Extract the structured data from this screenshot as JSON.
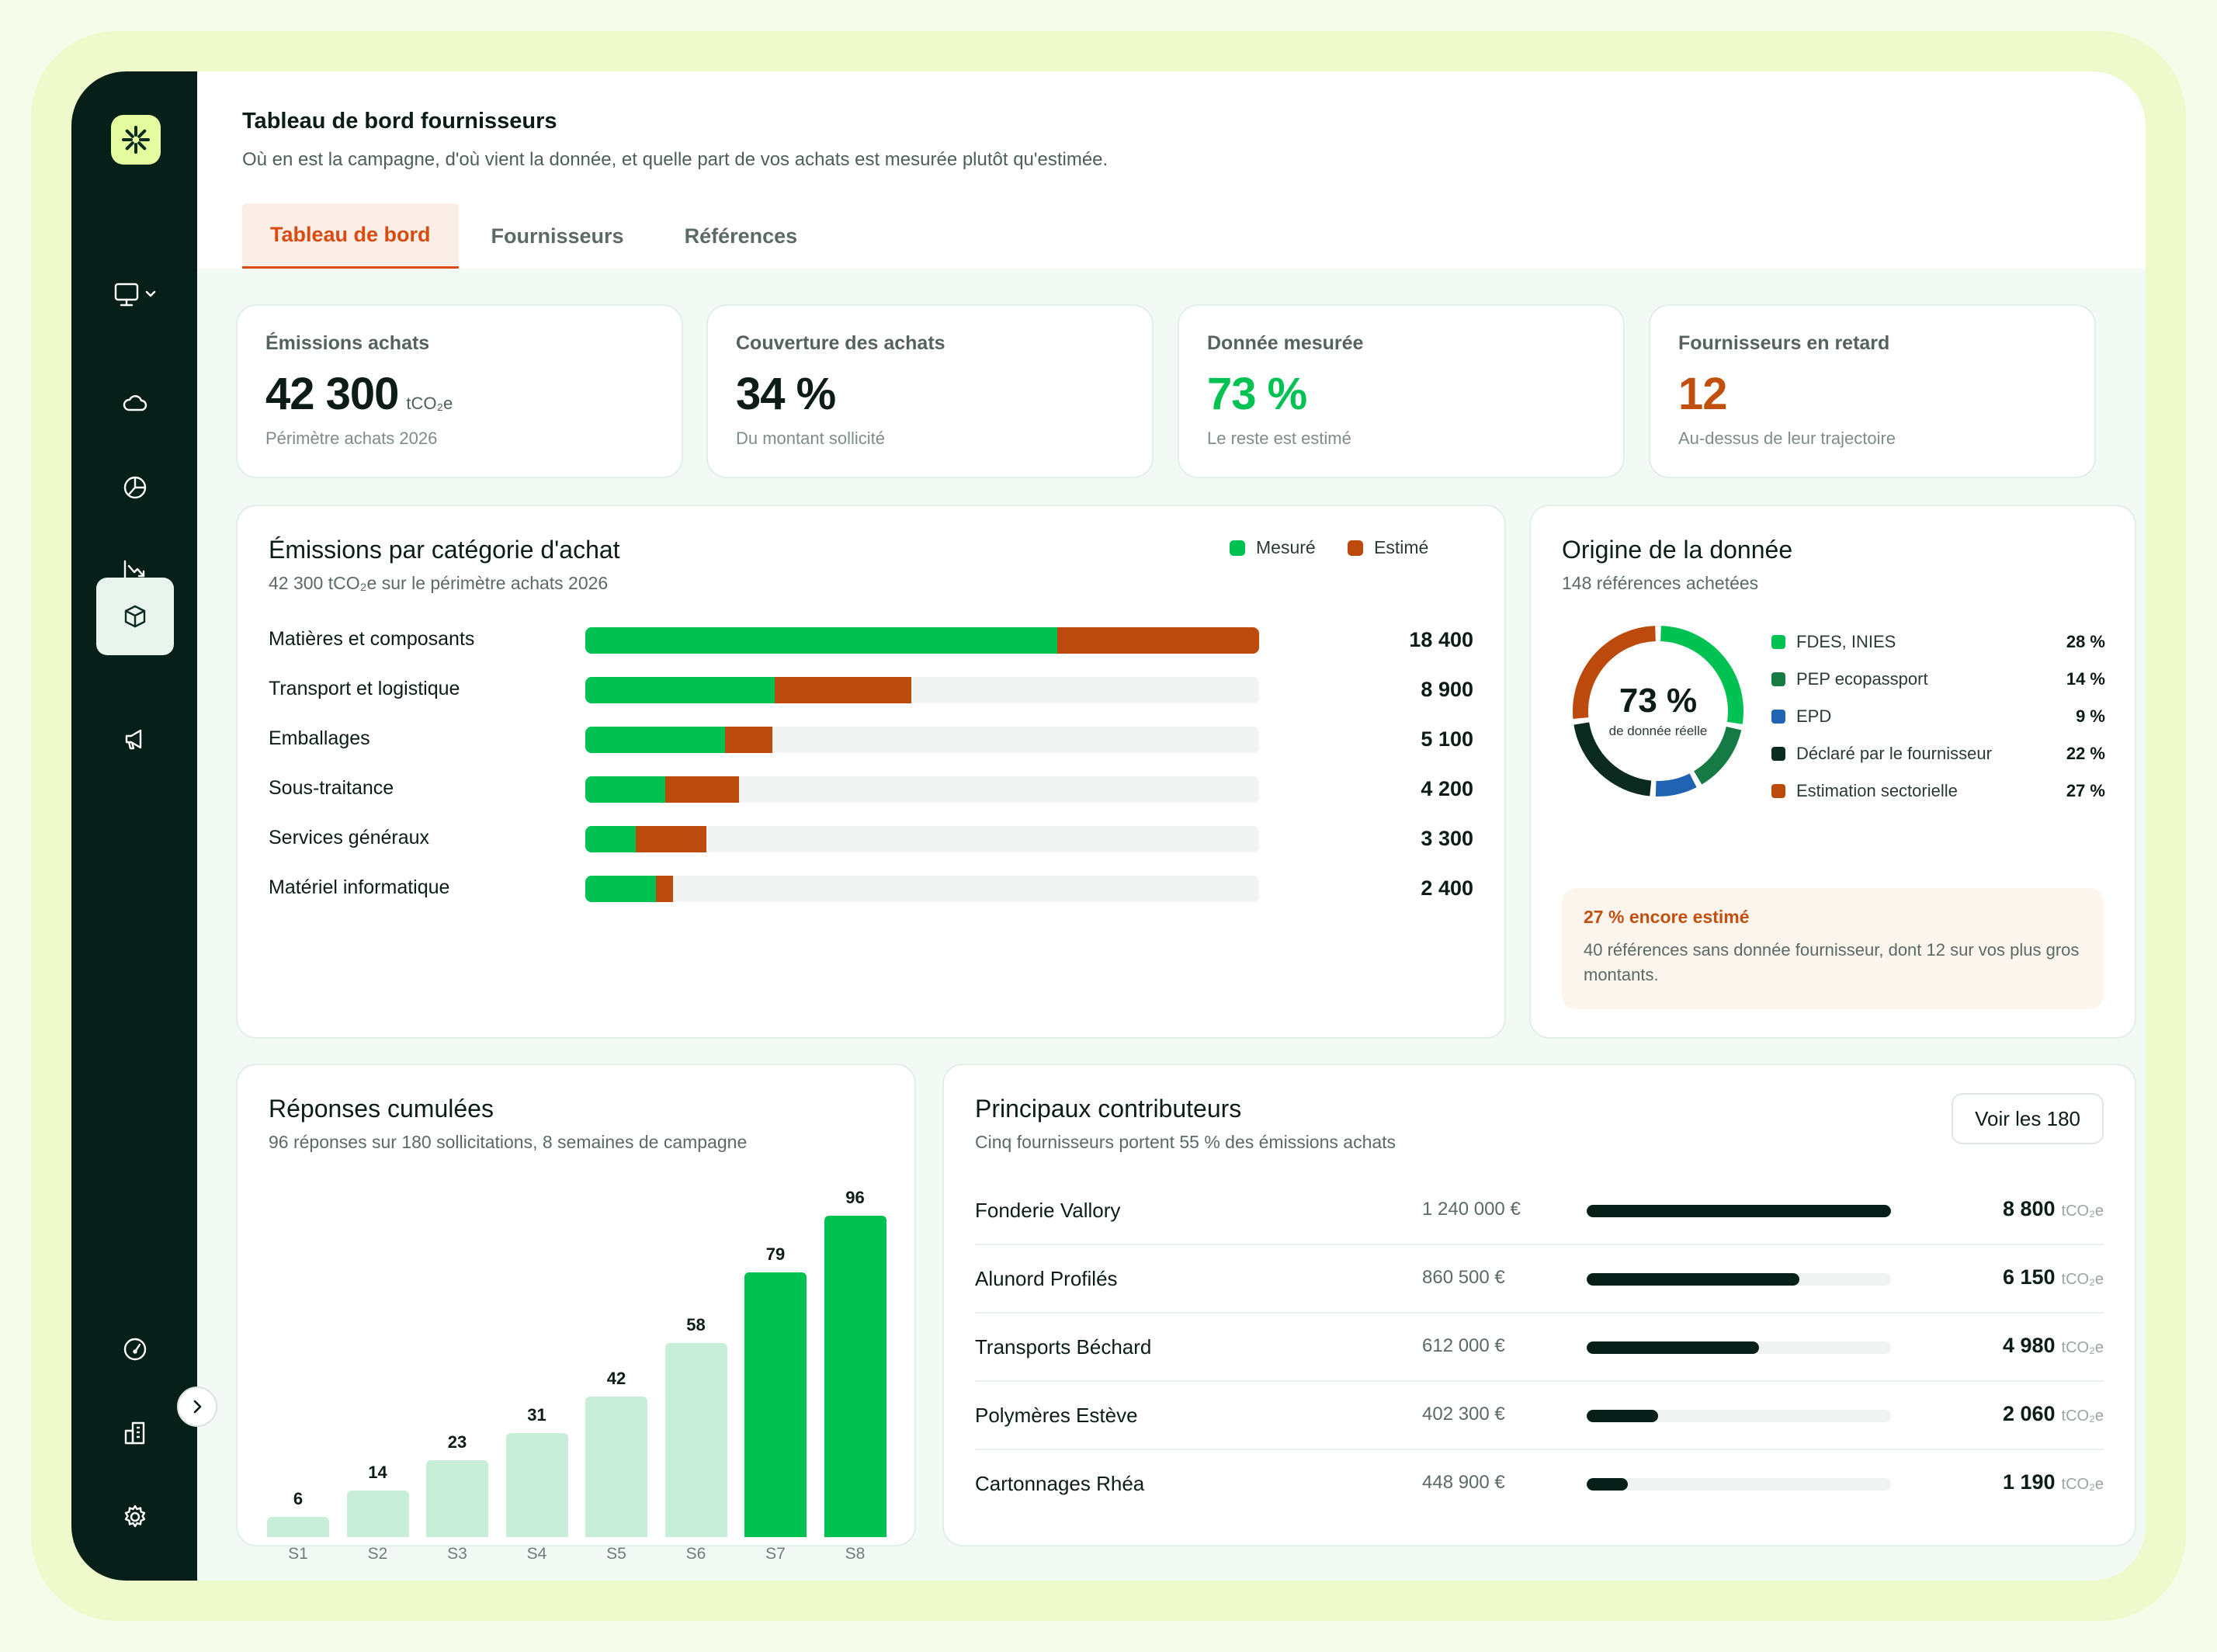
{
  "header": {
    "title": "Tableau de bord fournisseurs",
    "subtitle": "Où en est la campagne, d'où vient la donnée, et quelle part de vos achats est mesurée plutôt qu'estimée."
  },
  "tabs": [
    {
      "label": "Tableau de bord",
      "active": true
    },
    {
      "label": "Fournisseurs",
      "active": false
    },
    {
      "label": "Références",
      "active": false
    }
  ],
  "sidebar": {
    "icons": [
      "monitor-icon",
      "cloud-icon",
      "pie-chart-icon",
      "trend-down-icon",
      "box-icon",
      "megaphone-icon",
      "gauge-icon",
      "building-icon",
      "gear-icon"
    ],
    "active": "box-icon"
  },
  "kpis": [
    {
      "label": "Émissions achats",
      "value": "42 300",
      "unit": "tCO₂e",
      "sub": "Périmètre achats 2026",
      "color": "#0c1c17"
    },
    {
      "label": "Couverture des achats",
      "value": "34 %",
      "unit": "",
      "sub": "Du montant sollicité",
      "color": "#0c1c17"
    },
    {
      "label": "Donnée mesurée",
      "value": "73 %",
      "unit": "",
      "sub": "Le reste est estimé",
      "color": "#00c253"
    },
    {
      "label": "Fournisseurs en retard",
      "value": "12",
      "unit": "",
      "sub": "Au-dessus de leur trajectoire",
      "color": "#c1500f"
    }
  ],
  "categories": {
    "title": "Émissions par catégorie d'achat",
    "subtitle": "42 300 tCO₂e sur le périmètre achats 2026",
    "legend": {
      "measured": "Mesuré",
      "estimated": "Estimé"
    },
    "colors": {
      "measured": "#00c253",
      "estimated": "#bb4a0c"
    },
    "max": 18400,
    "rows": [
      {
        "label": "Matières et composants",
        "value": 18400,
        "display": "18 400",
        "measured_share": 0.7
      },
      {
        "label": "Transport et logistique",
        "value": 8900,
        "display": "8 900",
        "measured_share": 0.58
      },
      {
        "label": "Emballages",
        "value": 5100,
        "display": "5 100",
        "measured_share": 0.75
      },
      {
        "label": "Sous-traitance",
        "value": 4200,
        "display": "4 200",
        "measured_share": 0.52
      },
      {
        "label": "Services généraux",
        "value": 3300,
        "display": "3 300",
        "measured_share": 0.42
      },
      {
        "label": "Matériel informatique",
        "value": 2400,
        "display": "2 400",
        "measured_share": 0.8
      }
    ]
  },
  "origin": {
    "title": "Origine de la donnée",
    "subtitle": "148 références achetées",
    "center_value": "73 %",
    "center_label": "de donnée réelle",
    "sources": [
      {
        "name": "FDES, INIES",
        "pct": "28 %",
        "value": 28,
        "color": "#00c253"
      },
      {
        "name": "PEP ecopassport",
        "pct": "14 %",
        "value": 14,
        "color": "#167a45"
      },
      {
        "name": "EPD",
        "pct": "9 %",
        "value": 9,
        "color": "#1f63b2"
      },
      {
        "name": "Déclaré par le fournisseur",
        "pct": "22 %",
        "value": 22,
        "color": "#0b2b20"
      },
      {
        "name": "Estimation sectorielle",
        "pct": "27 %",
        "value": 27,
        "color": "#bb4a0c"
      }
    ],
    "alert": {
      "title": "27 % encore estimé",
      "text": "40 références sans donnée fournisseur, dont 12 sur vos plus gros montants."
    }
  },
  "chart_data": {
    "type": "bar",
    "title": "Réponses cumulées",
    "subtitle": "96 réponses sur 180 sollicitations, 8 semaines de campagne",
    "categories": [
      "S1",
      "S2",
      "S3",
      "S4",
      "S5",
      "S6",
      "S7",
      "S8"
    ],
    "values": [
      6,
      14,
      23,
      31,
      42,
      58,
      79,
      96
    ],
    "ylim": [
      0,
      96
    ],
    "grid": false,
    "colors": {
      "past": "#c8eed9",
      "recent": "#00c253"
    },
    "highlight_from_index": 6
  },
  "contributors": {
    "title": "Principaux contributeurs",
    "subtitle": "Cinq fournisseurs portent 55 % des émissions achats",
    "button": "Voir les 180",
    "unit": "tCO₂e",
    "max": 8800,
    "rows": [
      {
        "name": "Fonderie Vallory",
        "amount": "1 240 000 €",
        "value": 8800,
        "display": "8 800"
      },
      {
        "name": "Alunord Profilés",
        "amount": "860 500 €",
        "value": 6150,
        "display": "6 150"
      },
      {
        "name": "Transports Béchard",
        "amount": "612 000 €",
        "value": 4980,
        "display": "4 980"
      },
      {
        "name": "Polymères Estève",
        "amount": "402 300 €",
        "value": 2060,
        "display": "2 060"
      },
      {
        "name": "Cartonnages Rhéa",
        "amount": "448 900 €",
        "value": 1190,
        "display": "1 190"
      }
    ]
  }
}
